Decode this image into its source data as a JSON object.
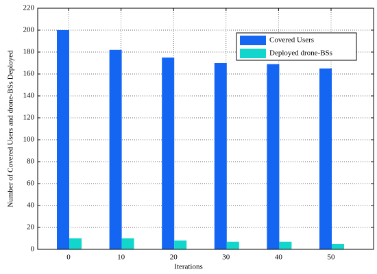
{
  "chart_data": {
    "type": "bar",
    "x_label": "Iterations",
    "y_label": "Number of Covered Users and drone-BSs Deployed",
    "categories": [
      "0",
      "10",
      "20",
      "30",
      "40",
      "50"
    ],
    "series": [
      {
        "name": "Covered Users",
        "color": "#1466f2",
        "values": [
          200,
          182,
          175,
          170,
          169,
          165
        ]
      },
      {
        "name": "Deployed drone-BSs",
        "color": "#12d6cc",
        "values": [
          10,
          10,
          8,
          7,
          7,
          5
        ]
      }
    ],
    "ylim": [
      0,
      220
    ],
    "yticks": [
      0,
      20,
      40,
      60,
      80,
      100,
      120,
      140,
      160,
      180,
      200,
      220
    ],
    "grid": true,
    "legend": "upper right"
  }
}
